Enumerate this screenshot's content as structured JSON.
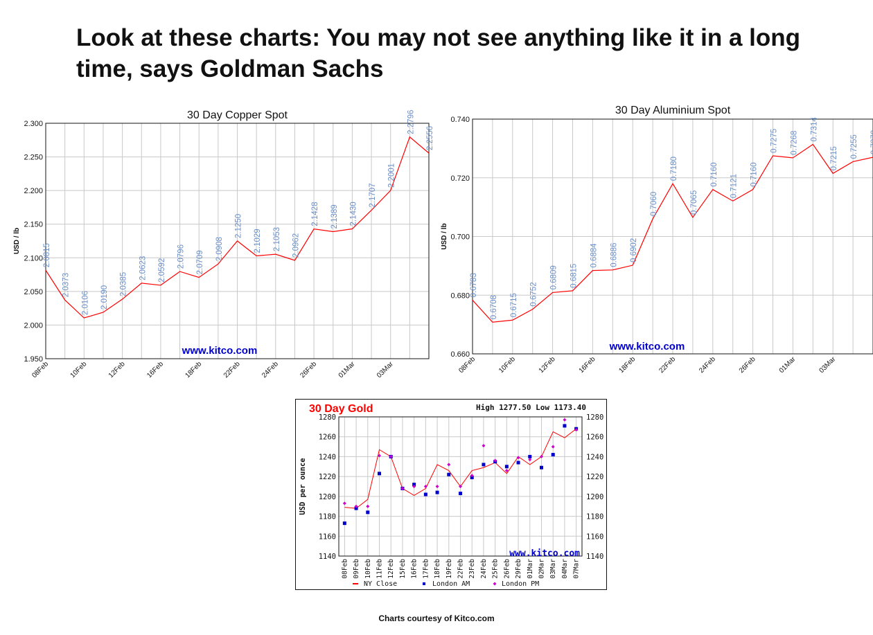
{
  "headline": "Look at these charts: You may not see anything like it in a long time, says Goldman Sachs",
  "footer_credit": "Charts courtesy of Kitco.com",
  "colors": {
    "line_red": "#ff0000",
    "data_label_blue": "#6a8fc8",
    "watermark_blue": "#0000cc",
    "grid": "#c8c8c8",
    "gold_title_red": "#ff0000",
    "london_am_blue": "#0000cc",
    "london_pm_magenta": "#cc00cc"
  },
  "chart_data": [
    {
      "id": "copper",
      "type": "line",
      "title": "30 Day Copper Spot",
      "ylabel": "USD / lb",
      "watermark": "www.kitco.com",
      "ylim": [
        1.95,
        2.3
      ],
      "yticks": [
        "1.950",
        "2.000",
        "2.050",
        "2.100",
        "2.150",
        "2.200",
        "2.250",
        "2.300"
      ],
      "xtick_labels": [
        "08Feb",
        "10Feb",
        "12Feb",
        "16Feb",
        "18Feb",
        "22Feb",
        "24Feb",
        "26Feb",
        "01Mar",
        "03Mar"
      ],
      "point_count": 21,
      "values": [
        2.0815,
        2.0373,
        2.0106,
        2.019,
        2.0385,
        2.0623,
        2.0592,
        2.0796,
        2.0709,
        2.0908,
        2.125,
        2.1029,
        2.1053,
        2.0962,
        2.1428,
        2.1389,
        2.143,
        2.1707,
        2.2001,
        2.2796,
        2.2556
      ],
      "value_labels": [
        "2.0815",
        "2.0373",
        "2.0106",
        "2.0190",
        "2.0385",
        "2.0623",
        "2.0592",
        "2.0796",
        "2.0709",
        "2.0908",
        "2.1250",
        "2.1029",
        "2.1053",
        "2.0962",
        "2.1428",
        "2.1389",
        "2.1430",
        "2.1707",
        "2.2001",
        "2.2796",
        "2.2556"
      ],
      "grid": true
    },
    {
      "id": "aluminium",
      "type": "line",
      "title": "30 Day Aluminium Spot",
      "ylabel": "USD / lb",
      "watermark": "www.kitco.com",
      "ylim": [
        0.66,
        0.74
      ],
      "yticks": [
        "0.660",
        "0.680",
        "0.700",
        "0.720",
        "0.740"
      ],
      "xtick_labels": [
        "08Feb",
        "10Feb",
        "12Feb",
        "16Feb",
        "18Feb",
        "22Feb",
        "24Feb",
        "26Feb",
        "01Mar",
        "03Mar"
      ],
      "point_count": 21,
      "values": [
        0.6783,
        0.6708,
        0.6715,
        0.6752,
        0.6809,
        0.6815,
        0.6884,
        0.6886,
        0.6902,
        0.706,
        0.718,
        0.7065,
        0.716,
        0.7121,
        0.716,
        0.7275,
        0.7268,
        0.7314,
        0.7215,
        0.7255,
        0.727
      ],
      "value_labels": [
        "0.6783",
        "0.6708",
        "0.6715",
        "0.6752",
        "0.6809",
        "0.6815",
        "0.6884",
        "0.6886",
        "0.6902",
        "0.7060",
        "0.7180",
        "0.7065",
        "0.7160",
        "0.7121",
        "0.7160",
        "0.7275",
        "0.7268",
        "0.7314",
        "0.7215",
        "0.7255",
        "0.7270"
      ],
      "grid": true
    },
    {
      "id": "gold",
      "type": "line",
      "title": "30 Day Gold",
      "high_low": "High 1277.50 Low 1173.40",
      "ylabel": "USD per ounce",
      "watermark": "www.kitco.com",
      "ylim": [
        1140,
        1280
      ],
      "yticks": [
        "1140",
        "1160",
        "1180",
        "1200",
        "1220",
        "1240",
        "1260",
        "1280"
      ],
      "categories": [
        "08Feb",
        "09Feb",
        "10Feb",
        "11Feb",
        "12Feb",
        "15Feb",
        "16Feb",
        "17Feb",
        "18Feb",
        "19Feb",
        "22Feb",
        "23Feb",
        "24Feb",
        "25Feb",
        "26Feb",
        "29Feb",
        "01Mar",
        "02Mar",
        "03Mar",
        "04Mar",
        "07Mar"
      ],
      "series": [
        {
          "name": "NY Close",
          "kind": "line",
          "values": [
            1189,
            1188,
            1197,
            1247,
            1240,
            1208,
            1201,
            1208,
            1232,
            1226,
            1210,
            1226,
            1229,
            1234,
            1223,
            1240,
            1232,
            1240,
            1265,
            1259,
            1268
          ]
        },
        {
          "name": "London AM",
          "kind": "square",
          "values": [
            1173,
            1188,
            1184,
            1223,
            1240,
            1208,
            1212,
            1202,
            1204,
            1222,
            1203,
            1219,
            1232,
            1235,
            1230,
            1234,
            1240,
            1229,
            1242,
            1271,
            1268
          ]
        },
        {
          "name": "London PM",
          "kind": "diamond",
          "values": [
            1193,
            1190,
            1190,
            1241,
            1240,
            1208,
            1210,
            1210,
            1210,
            1232,
            1210,
            1221,
            1251,
            1236,
            1226,
            1239,
            1237,
            1240,
            1250,
            1277,
            1267
          ]
        }
      ],
      "grid": true,
      "legend_position": "bottom"
    }
  ]
}
